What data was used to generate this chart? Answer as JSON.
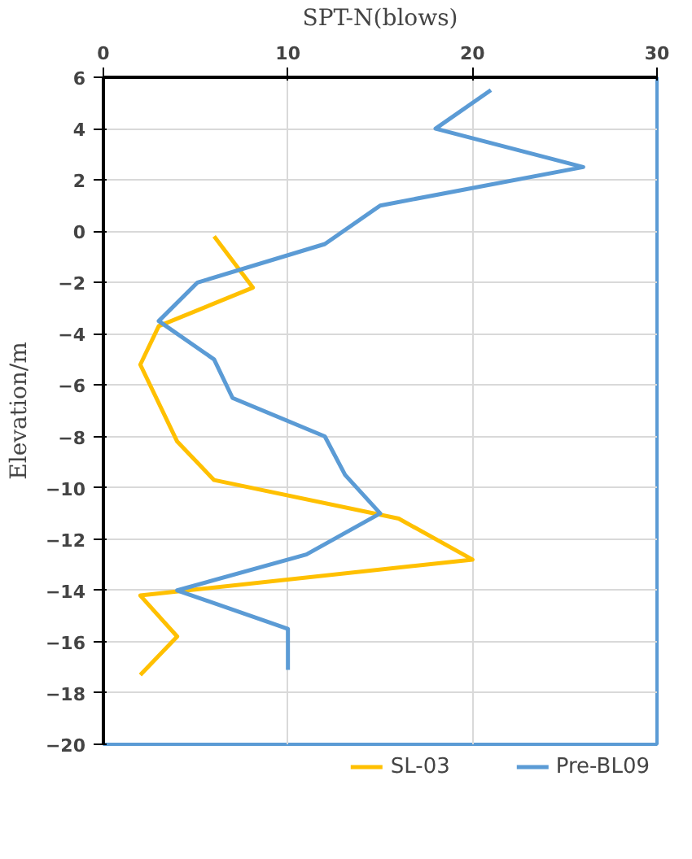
{
  "chart_data": {
    "type": "line",
    "xlabel": "SPT-N(blows)",
    "ylabel": "Elevation/m",
    "xlim": [
      0,
      30
    ],
    "xticks": [
      0,
      10,
      20,
      30
    ],
    "ylim": [
      -20,
      6
    ],
    "yticks": [
      -20,
      -18,
      -16,
      -14,
      -12,
      -10,
      -8,
      -6,
      -4,
      -2,
      0,
      2,
      4,
      6
    ],
    "grid": true,
    "legend": "bottom",
    "marker": "none",
    "line_style": "solid",
    "series": [
      {
        "name": "SL-03",
        "color": "#ffc000",
        "x": [
          6.0,
          8.1,
          3.0,
          2.0,
          4.0,
          6.0,
          16.0,
          20.0,
          2.0,
          4.0,
          2.0
        ],
        "values": [
          -0.2,
          -2.2,
          -3.7,
          -5.2,
          -8.2,
          -9.7,
          -11.2,
          -12.8,
          -14.2,
          -15.8,
          -17.3
        ]
      },
      {
        "name": "Pre-BL09",
        "color": "#5b9bd5",
        "x": [
          21.0,
          18.0,
          26.0,
          15.0,
          12.0,
          5.1,
          3.0,
          6.0,
          7.0,
          12.0,
          13.1,
          15.0,
          11.0,
          4.0,
          10.0,
          10.0
        ],
        "values": [
          5.5,
          4.0,
          2.5,
          1.0,
          -0.5,
          -2.0,
          -3.5,
          -5.0,
          -6.5,
          -8.0,
          -9.5,
          -11.0,
          -12.6,
          -14.0,
          -15.5,
          -17.1
        ]
      }
    ]
  }
}
